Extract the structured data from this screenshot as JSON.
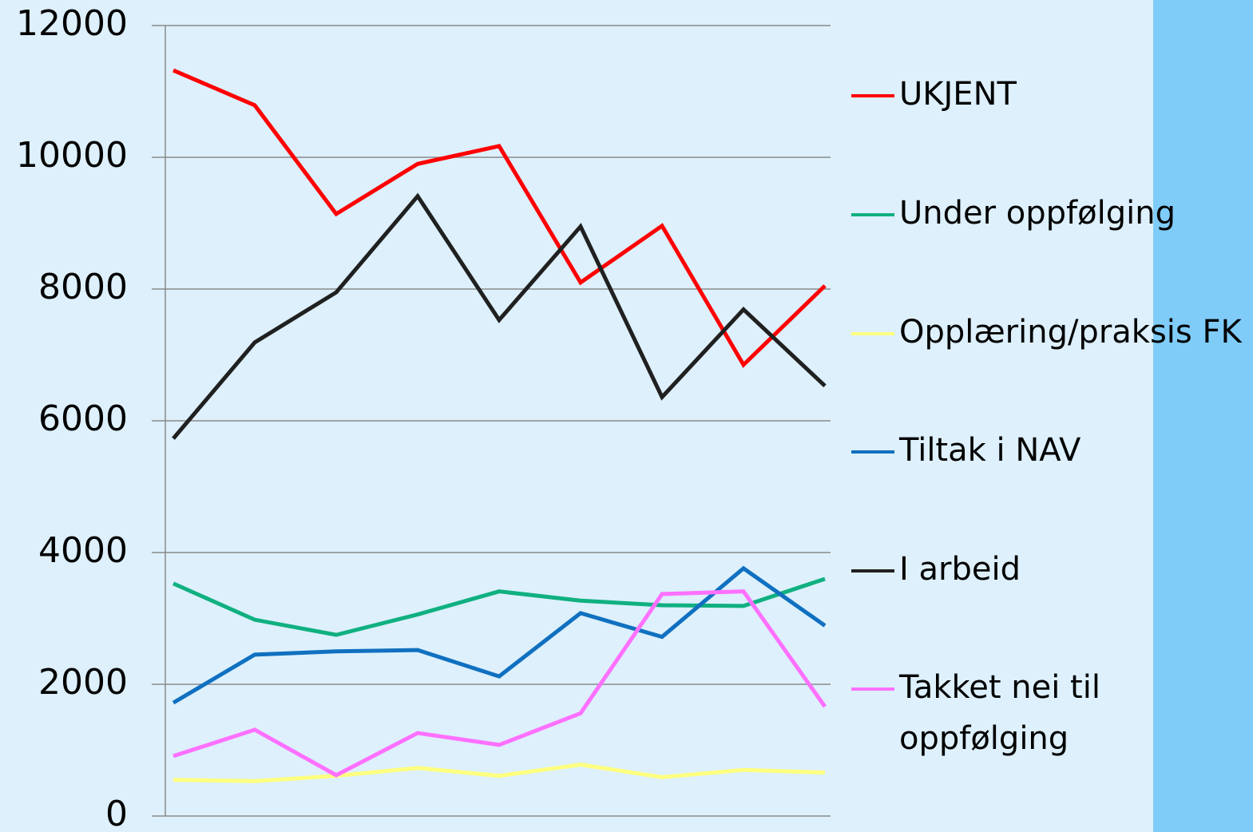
{
  "chart_data": {
    "type": "line",
    "categories": [
      null,
      null,
      null,
      null,
      null,
      null,
      null,
      null,
      null
    ],
    "ylim": [
      0,
      12000
    ],
    "yticks": [
      0,
      2000,
      4000,
      6000,
      8000,
      10000,
      12000
    ],
    "grid": true,
    "legend": "right",
    "series": [
      {
        "name": "UKJENT",
        "color": "#ff0000",
        "values": [
          11320,
          10790,
          9140,
          9900,
          10170,
          8100,
          8960,
          6850,
          8050
        ]
      },
      {
        "name": "Under oppfølging",
        "color": "#10b080",
        "values": [
          3530,
          2980,
          2750,
          3060,
          3410,
          3270,
          3200,
          3190,
          3600
        ]
      },
      {
        "name": "Opplæring/praksis FK",
        "color": "#ffff80",
        "values": [
          550,
          530,
          610,
          730,
          610,
          780,
          590,
          700,
          660
        ]
      },
      {
        "name": "Tiltak i NAV",
        "color": "#1070c0",
        "values": [
          1720,
          2450,
          2500,
          2520,
          2120,
          3080,
          2720,
          3760,
          2890
        ]
      },
      {
        "name": "I arbeid",
        "color": "#202020",
        "values": [
          5730,
          7190,
          7950,
          9410,
          7530,
          8950,
          6360,
          7690,
          6530
        ]
      },
      {
        "name": "Takket nei til oppfølging",
        "color": "#ff70ff",
        "values": [
          910,
          1310,
          620,
          1260,
          1080,
          1560,
          3370,
          3410,
          1660
        ]
      }
    ]
  }
}
